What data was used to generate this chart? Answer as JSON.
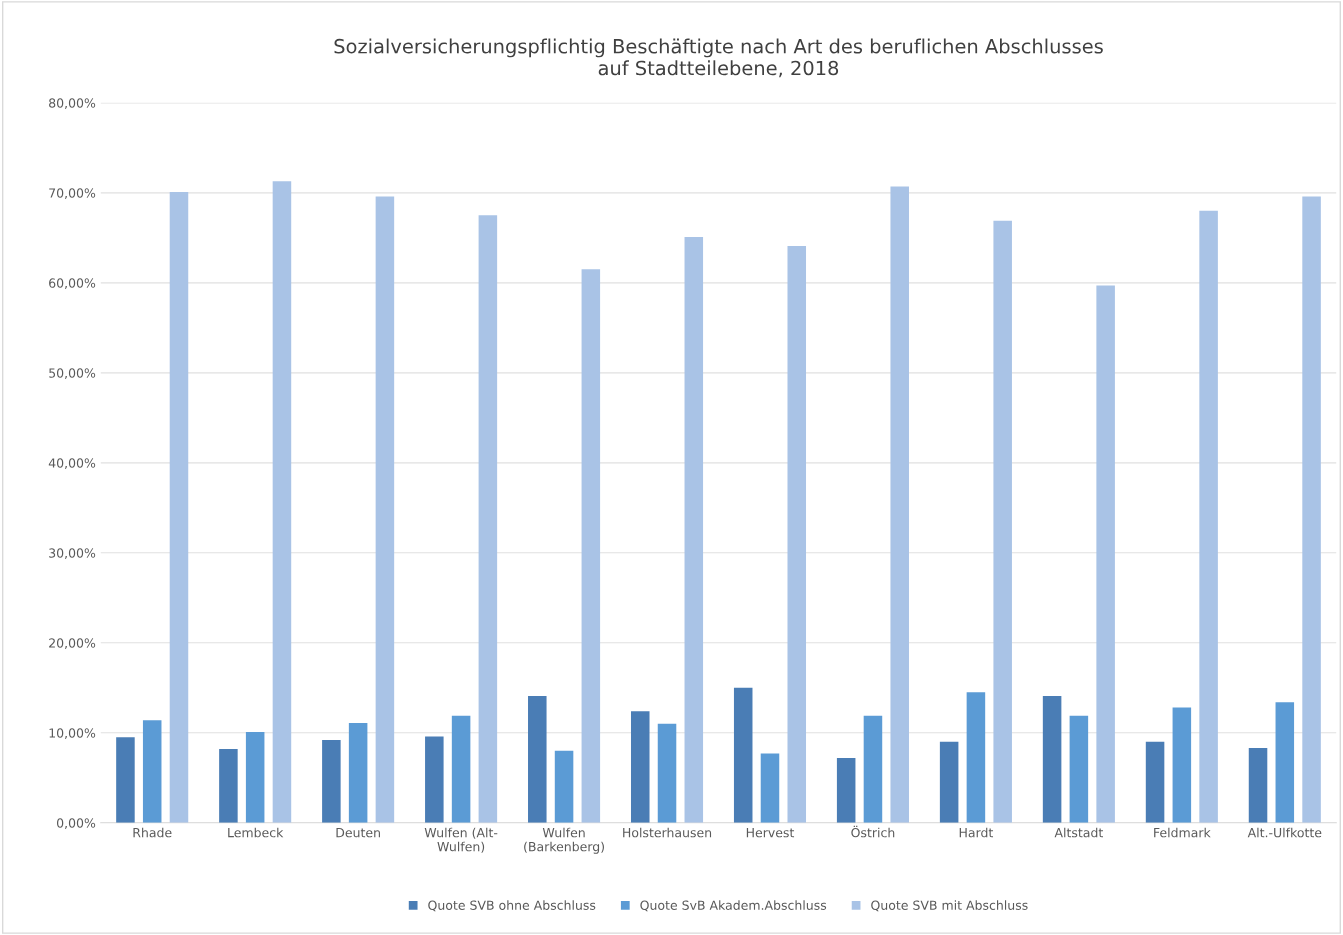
{
  "chart_data": {
    "type": "bar",
    "title": "Sozialversicherungspflichtig Beschäftigte nach Art des beruflichen Abschlusses\nauf Stadtteilebene, 2018",
    "categories": [
      "Rhade",
      "Lembeck",
      "Deuten",
      "Wulfen (Alt-\nWulfen)",
      "Wulfen\n(Barkenberg)",
      "Holsterhausen",
      "Hervest",
      "Östrich",
      "Hardt",
      "Altstadt",
      "Feldmark",
      "Alt.-Ulfkotte"
    ],
    "series": [
      {
        "name": "Quote SVB ohne Abschluss",
        "color": "#4a7db5",
        "values": [
          9.5,
          8.2,
          9.2,
          9.6,
          14.1,
          12.4,
          15.0,
          7.2,
          9.0,
          14.1,
          9.0,
          8.3
        ]
      },
      {
        "name": "Quote SvB Akadem.Abschluss",
        "color": "#5b9bd5",
        "values": [
          11.4,
          10.1,
          11.1,
          11.9,
          8.0,
          11.0,
          7.7,
          11.9,
          14.5,
          11.9,
          12.8,
          13.4
        ]
      },
      {
        "name": "Quote SVB mit Abschluss",
        "color": "#a9c3e6",
        "values": [
          70.1,
          71.3,
          69.6,
          67.5,
          61.5,
          65.1,
          64.1,
          70.7,
          66.9,
          59.7,
          68.0,
          69.6
        ]
      }
    ],
    "ylim": [
      0,
      80
    ],
    "yticks": [
      {
        "value": 0,
        "label": "0,00%"
      },
      {
        "value": 10,
        "label": "10,00%"
      },
      {
        "value": 20,
        "label": "20,00%"
      },
      {
        "value": 30,
        "label": "30,00%"
      },
      {
        "value": 40,
        "label": "40,00%"
      },
      {
        "value": 50,
        "label": "50,00%"
      },
      {
        "value": 60,
        "label": "60,00%"
      },
      {
        "value": 70,
        "label": "70,00%"
      },
      {
        "value": 80,
        "label": "80,00%"
      }
    ],
    "grid": "y",
    "legend": "bottom"
  }
}
